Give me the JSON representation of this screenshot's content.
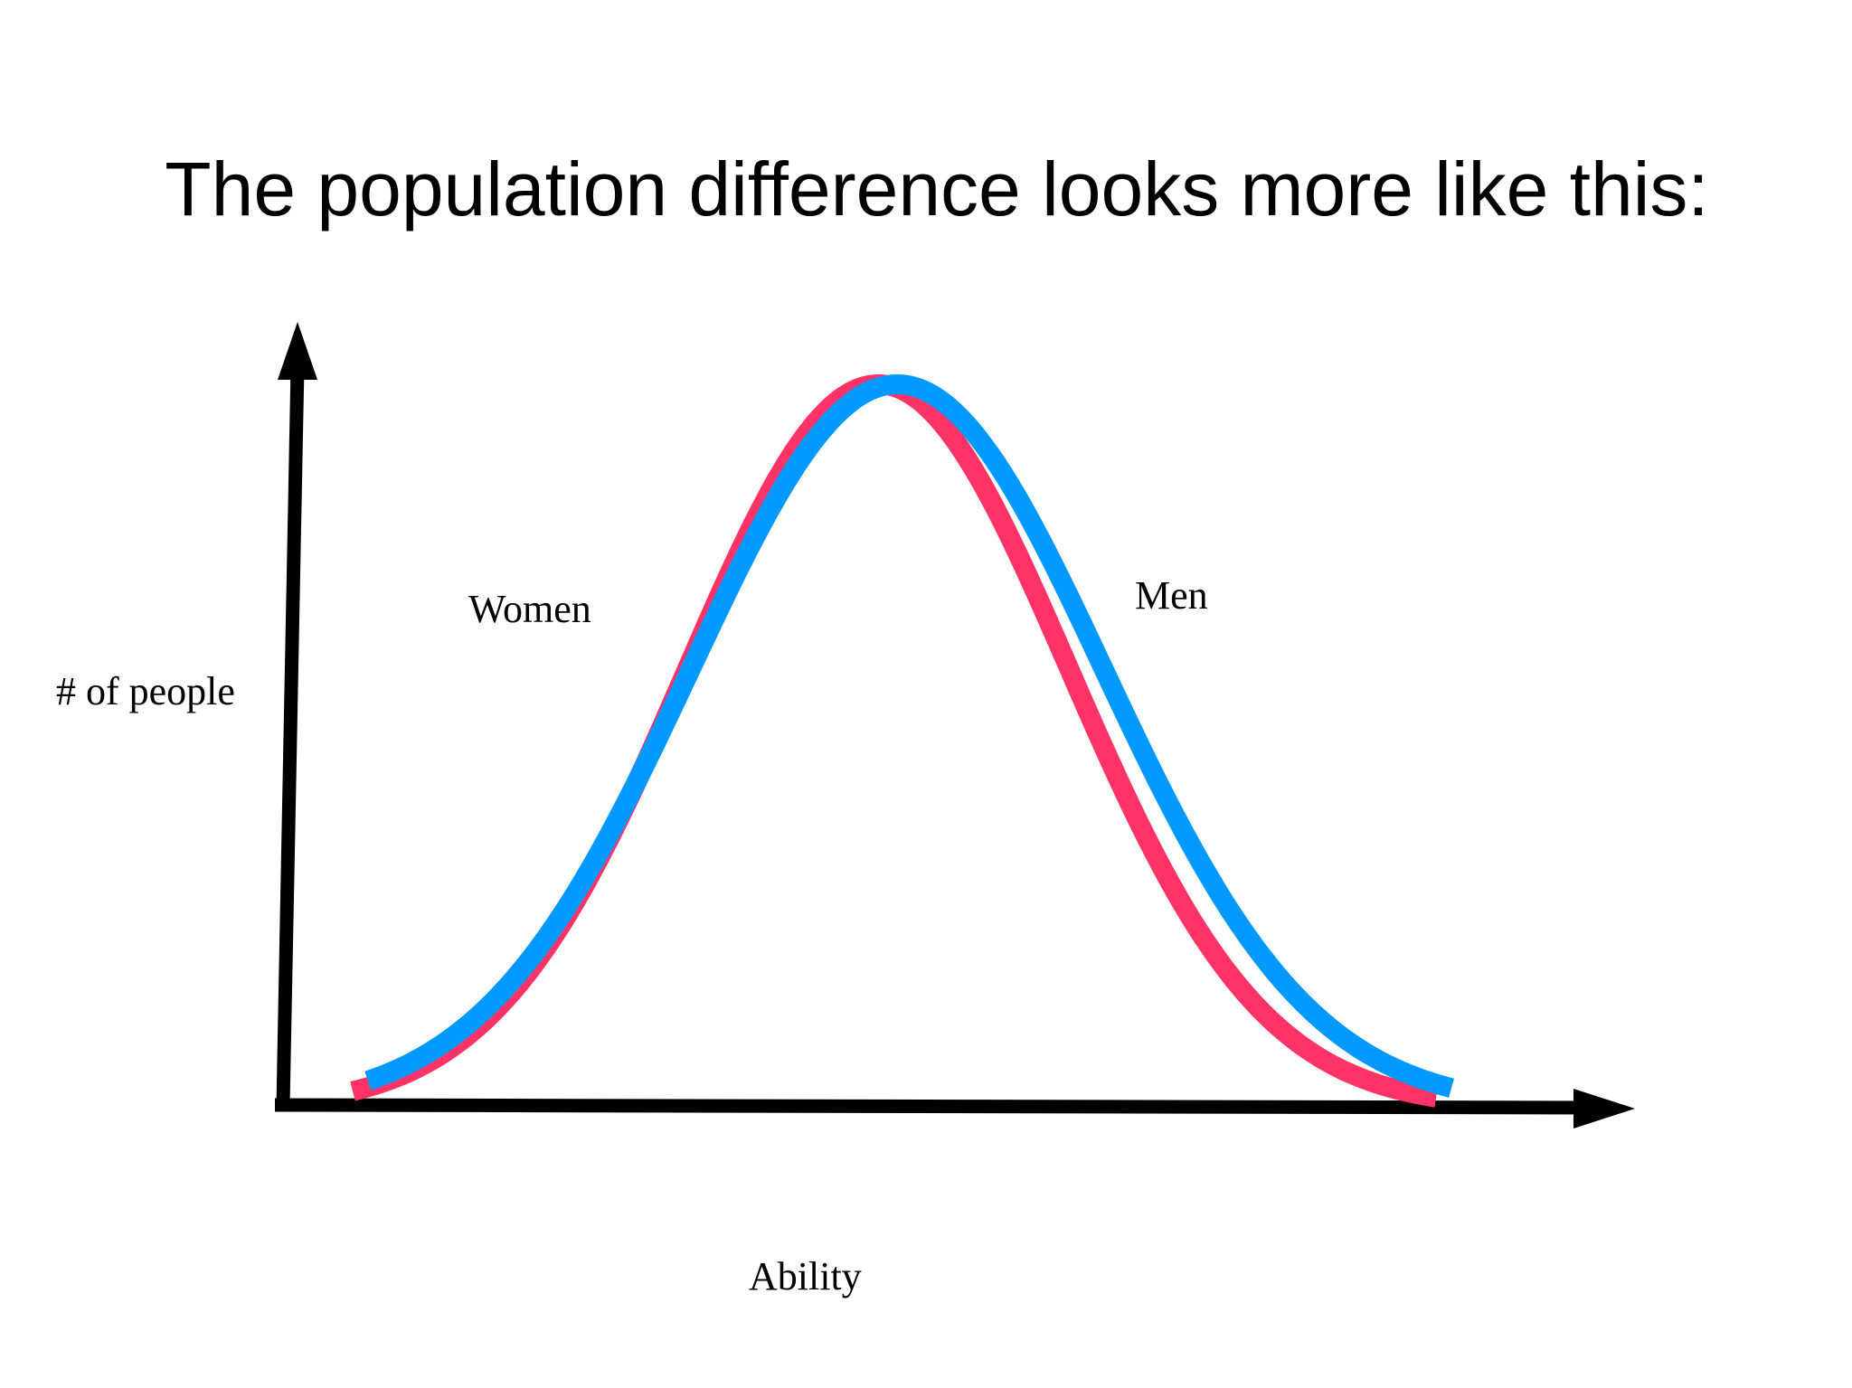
{
  "slide": {
    "title": "The population difference looks more like this:"
  },
  "chart_data": {
    "type": "line",
    "xlabel": "Ability",
    "ylabel": "# of people",
    "grid": false,
    "series": [
      {
        "name": "Women",
        "color": "#ff3366",
        "mean": 0.0,
        "sd": 1.0
      },
      {
        "name": "Men",
        "color": "#0099ff",
        "mean": 0.1,
        "sd": 1.08
      }
    ],
    "xlim": [
      -2.75,
      3.0
    ],
    "ylim": [
      0,
      1.15
    ]
  },
  "colors": {
    "axis": "#000000",
    "background": "#ffffff"
  }
}
